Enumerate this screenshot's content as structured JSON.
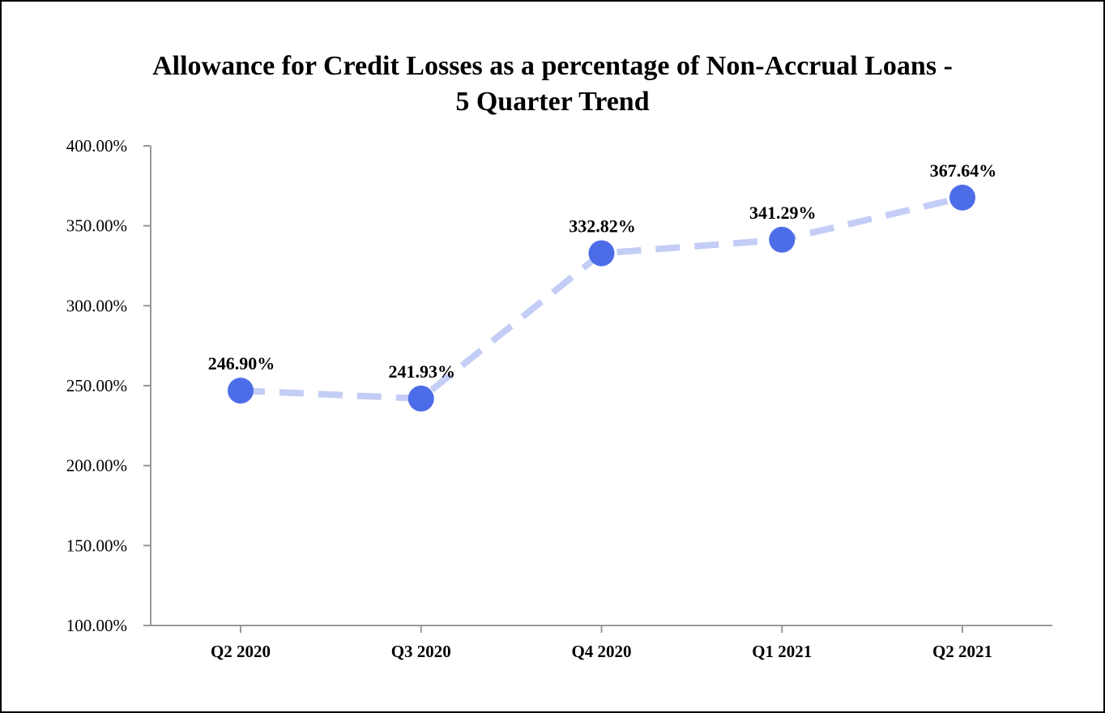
{
  "chart_data": {
    "type": "line",
    "title_lines": [
      "Allowance for Credit Losses as a percentage of Non-Accrual Loans -",
      "5 Quarter Trend"
    ],
    "categories": [
      "Q2 2020",
      "Q3 2020",
      "Q4 2020",
      "Q1 2021",
      "Q2 2021"
    ],
    "values": [
      246.9,
      241.93,
      332.82,
      341.29,
      367.64
    ],
    "data_labels": [
      "246.90%",
      "241.93%",
      "332.82%",
      "341.29%",
      "367.64%"
    ],
    "ylim": [
      100,
      400
    ],
    "yticks": [
      100,
      150,
      200,
      250,
      300,
      350,
      400
    ],
    "ytick_labels": [
      "100.00%",
      "150.00%",
      "200.00%",
      "250.00%",
      "300.00%",
      "350.00%",
      "400.00%"
    ],
    "grid": false,
    "legend": "none",
    "colors": {
      "marker": "#4d6ce8",
      "line": "#c3cdf6",
      "axis": "#999999"
    }
  }
}
